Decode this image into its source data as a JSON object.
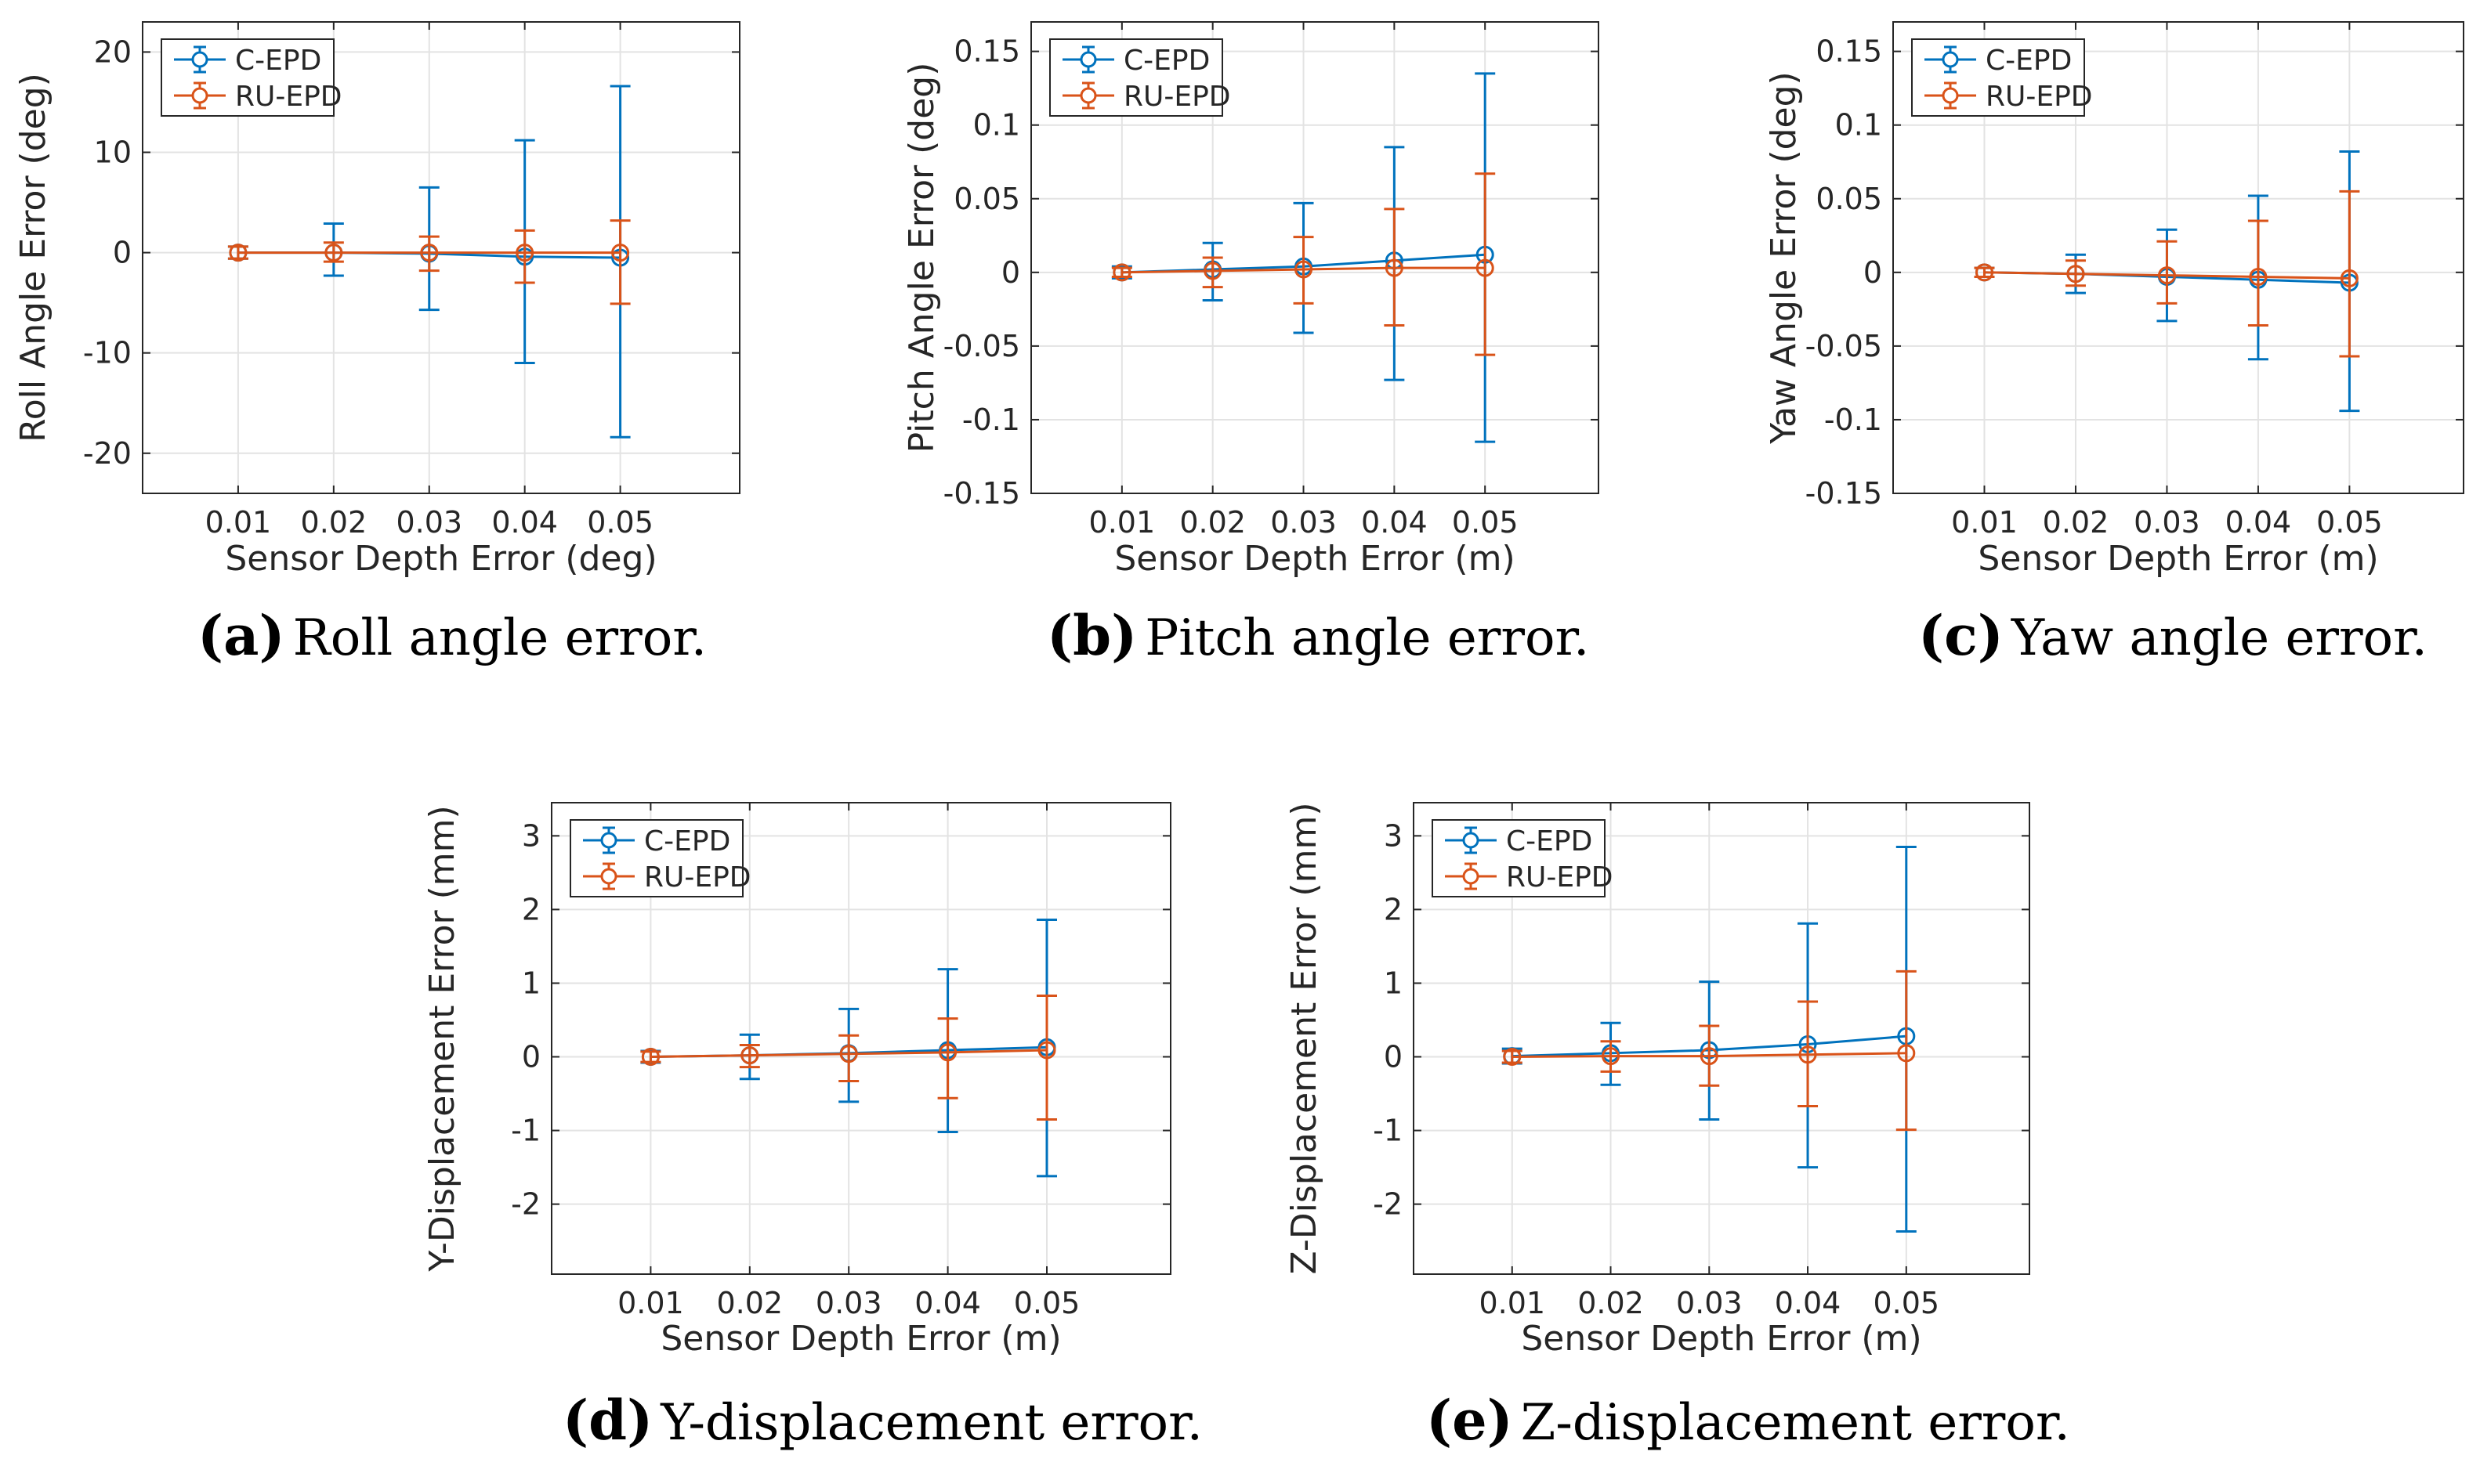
{
  "colors": {
    "c_epd": "#0072BD",
    "ru_epd": "#D95319",
    "grid": "#e3e3e3",
    "axis": "#262626"
  },
  "legend": {
    "c_epd": "C-EPD",
    "ru_epd": "RU-EPD"
  },
  "chart_data": [
    {
      "id": "a",
      "type": "line",
      "caption_letter": "(a)",
      "caption": "Roll angle error.",
      "xlabel": "Sensor Depth Error (deg)",
      "ylabel": "Roll Angle Error (deg)",
      "x_ticks": [
        "0.01",
        "0.02",
        "0.03",
        "0.04",
        "0.05"
      ],
      "x": [
        0.01,
        0.02,
        0.03,
        0.04,
        0.05
      ],
      "xlim": [
        0.0,
        0.0625
      ],
      "ylim": [
        -24,
        23
      ],
      "y_ticks": [
        20,
        10,
        0,
        -10,
        -20
      ],
      "y_tick_labels": [
        "20",
        "10",
        "0",
        "-10",
        "-20"
      ],
      "series": [
        {
          "name": "C-EPD",
          "values": [
            0.0,
            0.0,
            -0.1,
            -0.4,
            -0.5
          ],
          "err_low": [
            0.6,
            2.3,
            5.6,
            10.6,
            17.9
          ],
          "err_high": [
            0.6,
            2.9,
            6.6,
            11.6,
            17.1
          ]
        },
        {
          "name": "RU-EPD",
          "values": [
            0.0,
            0.0,
            0.0,
            0.0,
            0.0
          ],
          "err_low": [
            0.6,
            0.9,
            1.8,
            3.0,
            5.1
          ],
          "err_high": [
            0.6,
            1.0,
            1.6,
            2.2,
            3.2
          ]
        }
      ]
    },
    {
      "id": "b",
      "type": "line",
      "caption_letter": "(b)",
      "caption": "Pitch angle error.",
      "xlabel": "Sensor Depth Error (m)",
      "ylabel": "Pitch Angle Error (deg)",
      "x_ticks": [
        "0.01",
        "0.02",
        "0.03",
        "0.04",
        "0.05"
      ],
      "x": [
        0.01,
        0.02,
        0.03,
        0.04,
        0.05
      ],
      "xlim": [
        0.0,
        0.0625
      ],
      "ylim": [
        -0.15,
        0.17
      ],
      "y_ticks": [
        0.15,
        0.1,
        0.05,
        0,
        -0.05,
        -0.1,
        -0.15
      ],
      "y_tick_labels": [
        "0.15",
        "0.1",
        "0.05",
        "0",
        "-0.05",
        "-0.1",
        "-0.15"
      ],
      "series": [
        {
          "name": "C-EPD",
          "values": [
            0.0,
            0.002,
            0.004,
            0.008,
            0.012
          ],
          "err_low": [
            0.004,
            0.021,
            0.045,
            0.081,
            0.127
          ],
          "err_high": [
            0.004,
            0.018,
            0.043,
            0.077,
            0.123
          ]
        },
        {
          "name": "RU-EPD",
          "values": [
            0.0,
            0.001,
            0.002,
            0.003,
            0.003
          ],
          "err_low": [
            0.003,
            0.011,
            0.023,
            0.039,
            0.059
          ],
          "err_high": [
            0.003,
            0.009,
            0.022,
            0.04,
            0.064
          ]
        }
      ]
    },
    {
      "id": "c",
      "type": "line",
      "caption_letter": "(c)",
      "caption": "Yaw angle error.",
      "xlabel": "Sensor Depth Error (m)",
      "ylabel": "Yaw Angle Error (deg)",
      "x_ticks": [
        "0.01",
        "0.02",
        "0.03",
        "0.04",
        "0.05"
      ],
      "x": [
        0.01,
        0.02,
        0.03,
        0.04,
        0.05
      ],
      "xlim": [
        0.0,
        0.0625
      ],
      "ylim": [
        -0.15,
        0.17
      ],
      "y_ticks": [
        0.15,
        0.1,
        0.05,
        0,
        -0.05,
        -0.1,
        -0.15
      ],
      "y_tick_labels": [
        "0.15",
        "0.1",
        "0.05",
        "0",
        "-0.05",
        "-0.1",
        "-0.15"
      ],
      "series": [
        {
          "name": "C-EPD",
          "values": [
            0.0,
            -0.001,
            -0.003,
            -0.005,
            -0.007
          ],
          "err_low": [
            0.003,
            0.013,
            0.03,
            0.054,
            0.087
          ],
          "err_high": [
            0.003,
            0.013,
            0.032,
            0.057,
            0.089
          ]
        },
        {
          "name": "RU-EPD",
          "values": [
            0.0,
            -0.001,
            -0.002,
            -0.003,
            -0.004
          ],
          "err_low": [
            0.003,
            0.008,
            0.019,
            0.033,
            0.053
          ],
          "err_high": [
            0.003,
            0.009,
            0.023,
            0.038,
            0.059
          ]
        }
      ]
    },
    {
      "id": "d",
      "type": "line",
      "caption_letter": "(d)",
      "caption": "Y-displacement error.",
      "xlabel": "Sensor Depth Error (m)",
      "ylabel": "Y-Displacement Error (mm)",
      "x_ticks": [
        "0.01",
        "0.02",
        "0.03",
        "0.04",
        "0.05"
      ],
      "x": [
        0.01,
        0.02,
        0.03,
        0.04,
        0.05
      ],
      "xlim": [
        0.0,
        0.0625
      ],
      "ylim": [
        -2.95,
        3.45
      ],
      "y_ticks": [
        3,
        2,
        1,
        0,
        -1,
        -2
      ],
      "y_tick_labels": [
        "3",
        "2",
        "1",
        "0",
        "-1",
        "-2"
      ],
      "series": [
        {
          "name": "C-EPD",
          "values": [
            0.0,
            0.02,
            0.05,
            0.09,
            0.13
          ],
          "err_low": [
            0.08,
            0.32,
            0.66,
            1.11,
            1.75
          ],
          "err_high": [
            0.08,
            0.28,
            0.6,
            1.1,
            1.73
          ]
        },
        {
          "name": "RU-EPD",
          "values": [
            0.0,
            0.02,
            0.04,
            0.06,
            0.09
          ],
          "err_low": [
            0.07,
            0.16,
            0.37,
            0.62,
            0.94
          ],
          "err_high": [
            0.07,
            0.14,
            0.25,
            0.46,
            0.74
          ]
        }
      ]
    },
    {
      "id": "e",
      "type": "line",
      "caption_letter": "(e)",
      "caption": "Z-displacement error.",
      "xlabel": "Sensor Depth Error (m)",
      "ylabel": "Z-Displacement Error (mm)",
      "x_ticks": [
        "0.01",
        "0.02",
        "0.03",
        "0.04",
        "0.05"
      ],
      "x": [
        0.01,
        0.02,
        0.03,
        0.04,
        0.05
      ],
      "xlim": [
        0.0,
        0.0625
      ],
      "ylim": [
        -2.95,
        3.45
      ],
      "y_ticks": [
        3,
        2,
        1,
        0,
        -1,
        -2
      ],
      "y_tick_labels": [
        "3",
        "2",
        "1",
        "0",
        "-1",
        "-2"
      ],
      "series": [
        {
          "name": "C-EPD",
          "values": [
            0.01,
            0.05,
            0.09,
            0.17,
            0.28
          ],
          "err_low": [
            0.1,
            0.43,
            0.94,
            1.67,
            2.65
          ],
          "err_high": [
            0.1,
            0.41,
            0.93,
            1.64,
            2.57
          ]
        },
        {
          "name": "RU-EPD",
          "values": [
            0.0,
            0.01,
            0.01,
            0.03,
            0.05
          ],
          "err_low": [
            0.08,
            0.21,
            0.4,
            0.7,
            1.04
          ],
          "err_high": [
            0.08,
            0.2,
            0.41,
            0.72,
            1.11
          ]
        }
      ]
    }
  ]
}
